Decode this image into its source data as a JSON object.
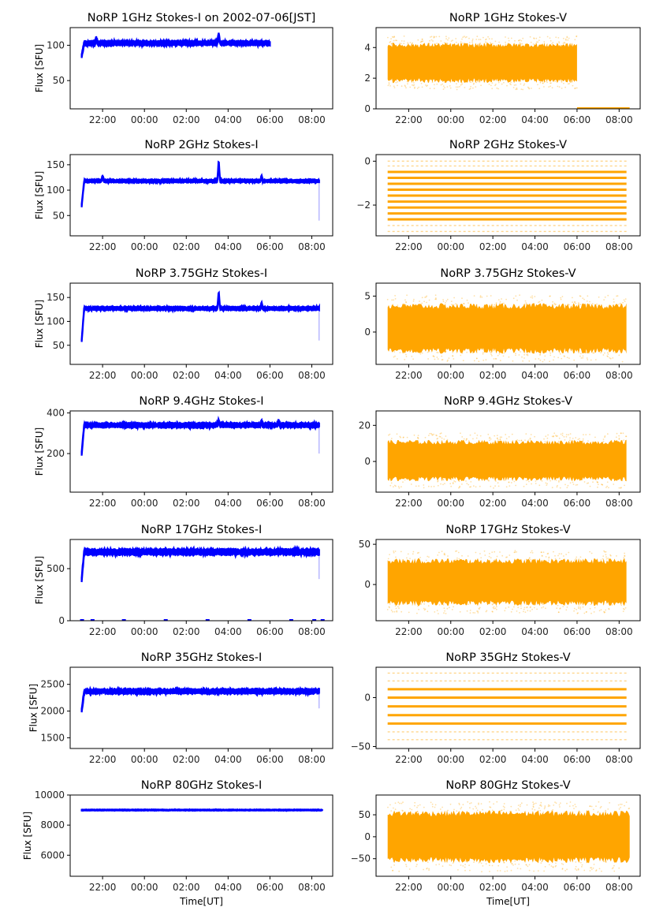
{
  "figure": {
    "colors": {
      "stokes_i": "#0000ff",
      "stokes_v": "#ffa500",
      "axes": "#000000",
      "background": "#ffffff"
    },
    "x_tick_labels": [
      "22:00",
      "00:00",
      "02:00",
      "04:00",
      "06:00",
      "08:00"
    ],
    "x_range_hours": [
      20.45,
      33.0
    ],
    "shared_xlabel": "Time[UT]",
    "shared_ylabel": "Flux [SFU]"
  },
  "chart_data": [
    {
      "type": "scatter",
      "panel": "I-1GHz",
      "title": "NoRP 1GHz Stokes-I on 2002-07-06[JST]",
      "xlabel": "",
      "ylabel": "Flux [SFU]",
      "ylim": [
        10,
        125
      ],
      "yticks": [
        50,
        100
      ],
      "ytick_labels": [
        "50",
        "100"
      ],
      "data_span_hours": [
        21.0,
        30.0
      ],
      "baseline": 103,
      "start_value": 84,
      "noise": 2.5,
      "features": [
        {
          "t": 27.55,
          "peak": 115
        },
        {
          "t": 21.7,
          "peak": 110
        }
      ],
      "tail_drop": null,
      "series": [
        {
          "name": "Stokes-I",
          "color": "#0000ff"
        }
      ]
    },
    {
      "type": "scatter",
      "panel": "V-1GHz",
      "title": "NoRP 1GHz Stokes-V",
      "xlabel": "",
      "ylabel": "",
      "ylim": [
        0,
        5.3
      ],
      "yticks": [
        0,
        2,
        4
      ],
      "ytick_labels": [
        "0",
        "2",
        "4"
      ],
      "data_span_hours": [
        21.0,
        30.0
      ],
      "band": {
        "center": 3.0,
        "half_width": 1.2
      },
      "zero_segment_hours": [
        30.0,
        32.5
      ],
      "series": [
        {
          "name": "Stokes-V",
          "color": "#ffa500"
        }
      ]
    },
    {
      "type": "scatter",
      "panel": "I-2GHz",
      "title": "NoRP 2GHz Stokes-I",
      "xlabel": "",
      "ylabel": "Flux [SFU]",
      "ylim": [
        10,
        170
      ],
      "yticks": [
        50,
        100,
        150
      ],
      "ytick_labels": [
        "50",
        "100",
        "150"
      ],
      "data_span_hours": [
        21.0,
        32.35
      ],
      "baseline": 118,
      "start_value": 70,
      "noise": 2.5,
      "features": [
        {
          "t": 27.55,
          "peak": 155
        },
        {
          "t": 29.6,
          "peak": 126
        },
        {
          "t": 22.0,
          "peak": 127
        }
      ],
      "tail_drop": 40,
      "series": [
        {
          "name": "Stokes-I",
          "color": "#0000ff"
        }
      ]
    },
    {
      "type": "scatter",
      "panel": "V-2GHz",
      "title": "NoRP 2GHz Stokes-V",
      "xlabel": "",
      "ylabel": "",
      "ylim": [
        -3.4,
        0.3
      ],
      "yticks": [
        -2,
        0
      ],
      "ytick_labels": [
        "−2",
        "0"
      ],
      "data_span_hours": [
        21.0,
        32.35
      ],
      "levels": [
        -3.2,
        -2.93,
        -2.65,
        -2.38,
        -2.11,
        -1.84,
        -1.57,
        -1.3,
        -1.03,
        -0.76,
        -0.49,
        -0.22,
        0.0
      ],
      "series": [
        {
          "name": "Stokes-V",
          "color": "#ffa500"
        }
      ]
    },
    {
      "type": "scatter",
      "panel": "I-3.75GHz",
      "title": "NoRP 3.75GHz Stokes-I",
      "xlabel": "",
      "ylabel": "Flux [SFU]",
      "ylim": [
        10,
        180
      ],
      "yticks": [
        50,
        100,
        150
      ],
      "ytick_labels": [
        "50",
        "100",
        "150"
      ],
      "data_span_hours": [
        21.0,
        32.35
      ],
      "baseline": 127,
      "start_value": 60,
      "noise": 3,
      "features": [
        {
          "t": 27.55,
          "peak": 160
        },
        {
          "t": 29.6,
          "peak": 136
        }
      ],
      "tail_drop": 60,
      "series": [
        {
          "name": "Stokes-I",
          "color": "#0000ff"
        }
      ]
    },
    {
      "type": "scatter",
      "panel": "V-3.75GHz",
      "title": "NoRP 3.75GHz Stokes-V",
      "xlabel": "",
      "ylabel": "",
      "ylim": [
        -4.5,
        6.8
      ],
      "yticks": [
        0,
        5
      ],
      "ytick_labels": [
        "0",
        "5"
      ],
      "data_span_hours": [
        21.0,
        32.35
      ],
      "band": {
        "center": 0.5,
        "half_width": 3.2
      },
      "series": [
        {
          "name": "Stokes-V",
          "color": "#ffa500"
        }
      ]
    },
    {
      "type": "scatter",
      "panel": "I-9.4GHz",
      "title": "NoRP 9.4GHz Stokes-I",
      "xlabel": "",
      "ylabel": "Flux [SFU]",
      "ylim": [
        10,
        410
      ],
      "yticks": [
        200,
        400
      ],
      "ytick_labels": [
        "200",
        "400"
      ],
      "data_span_hours": [
        21.0,
        32.35
      ],
      "baseline": 340,
      "start_value": 200,
      "noise": 9,
      "features": [
        {
          "t": 27.55,
          "peak": 360
        },
        {
          "t": 29.6,
          "peak": 355
        },
        {
          "t": 30.4,
          "peak": 358
        }
      ],
      "tail_drop": 200,
      "series": [
        {
          "name": "Stokes-I",
          "color": "#0000ff"
        }
      ]
    },
    {
      "type": "scatter",
      "panel": "V-9.4GHz",
      "title": "NoRP 9.4GHz Stokes-V",
      "xlabel": "",
      "ylabel": "",
      "ylim": [
        -17,
        28
      ],
      "yticks": [
        0,
        20
      ],
      "ytick_labels": [
        "0",
        "20"
      ],
      "data_span_hours": [
        21.0,
        32.35
      ],
      "band": {
        "center": 0.5,
        "half_width": 10.5
      },
      "series": [
        {
          "name": "Stokes-V",
          "color": "#ffa500"
        }
      ]
    },
    {
      "type": "scatter",
      "panel": "I-17GHz",
      "title": "NoRP 17GHz Stokes-I",
      "xlabel": "",
      "ylabel": "Flux [SFU]",
      "ylim": [
        0,
        780
      ],
      "yticks": [
        0,
        500
      ],
      "ytick_labels": [
        "0",
        "500"
      ],
      "data_span_hours": [
        21.0,
        32.35
      ],
      "baseline": 660,
      "start_value": 400,
      "noise": 22,
      "features": [],
      "tail_drop": 400,
      "zero_marks_hours": [
        21.0,
        21.5,
        23.0,
        25.0,
        27.0,
        29.0,
        31.0,
        32.1,
        32.5
      ],
      "series": [
        {
          "name": "Stokes-I",
          "color": "#0000ff"
        }
      ]
    },
    {
      "type": "scatter",
      "panel": "V-17GHz",
      "title": "NoRP 17GHz Stokes-V",
      "xlabel": "",
      "ylabel": "",
      "ylim": [
        -45,
        56
      ],
      "yticks": [
        0,
        50
      ],
      "ytick_labels": [
        "0",
        "50"
      ],
      "data_span_hours": [
        21.0,
        32.35
      ],
      "band": {
        "center": 3,
        "half_width": 27
      },
      "series": [
        {
          "name": "Stokes-V",
          "color": "#ffa500"
        }
      ]
    },
    {
      "type": "scatter",
      "panel": "I-35GHz",
      "title": "NoRP 35GHz Stokes-I",
      "xlabel": "",
      "ylabel": "Flux [SFU]",
      "ylim": [
        1300,
        2820
      ],
      "yticks": [
        1500,
        2000,
        2500
      ],
      "ytick_labels": [
        "1500",
        "2000",
        "2500"
      ],
      "data_span_hours": [
        21.0,
        32.35
      ],
      "baseline": 2370,
      "start_value": 2000,
      "noise": 35,
      "features": [],
      "tail_drop": 2050,
      "series": [
        {
          "name": "Stokes-I",
          "color": "#0000ff"
        }
      ]
    },
    {
      "type": "scatter",
      "panel": "V-35GHz",
      "title": "NoRP 35GHz Stokes-V",
      "xlabel": "",
      "ylabel": "",
      "ylim": [
        -52,
        31
      ],
      "yticks": [
        -50,
        0
      ],
      "ytick_labels": [
        "−50",
        "0"
      ],
      "data_span_hours": [
        21.0,
        32.35
      ],
      "levels": [
        -43,
        -35,
        -26.5,
        -18,
        -9,
        0,
        8.5,
        17,
        25
      ],
      "series": [
        {
          "name": "Stokes-V",
          "color": "#ffa500"
        }
      ]
    },
    {
      "type": "scatter",
      "panel": "I-80GHz",
      "title": "NoRP 80GHz Stokes-I",
      "xlabel": "Time[UT]",
      "ylabel": "Flux [SFU]",
      "ylim": [
        4600,
        10000
      ],
      "yticks": [
        6000,
        8000,
        10000
      ],
      "ytick_labels": [
        "6000",
        "8000",
        "10000"
      ],
      "data_span_hours": [
        21.0,
        32.5
      ],
      "baseline": 9000,
      "start_value": 9000,
      "noise": 30,
      "features": [],
      "tail_drop": null,
      "series": [
        {
          "name": "Stokes-I",
          "color": "#0000ff"
        }
      ]
    },
    {
      "type": "scatter",
      "panel": "V-80GHz",
      "title": "NoRP 80GHz Stokes-V",
      "xlabel": "Time[UT]",
      "ylabel": "",
      "ylim": [
        -90,
        95
      ],
      "yticks": [
        -50,
        0,
        50
      ],
      "ytick_labels": [
        "−50",
        "0",
        "50"
      ],
      "data_span_hours": [
        21.0,
        32.5
      ],
      "band": {
        "center": 0,
        "half_width": 55
      },
      "series": [
        {
          "name": "Stokes-V",
          "color": "#ffa500"
        }
      ]
    }
  ]
}
